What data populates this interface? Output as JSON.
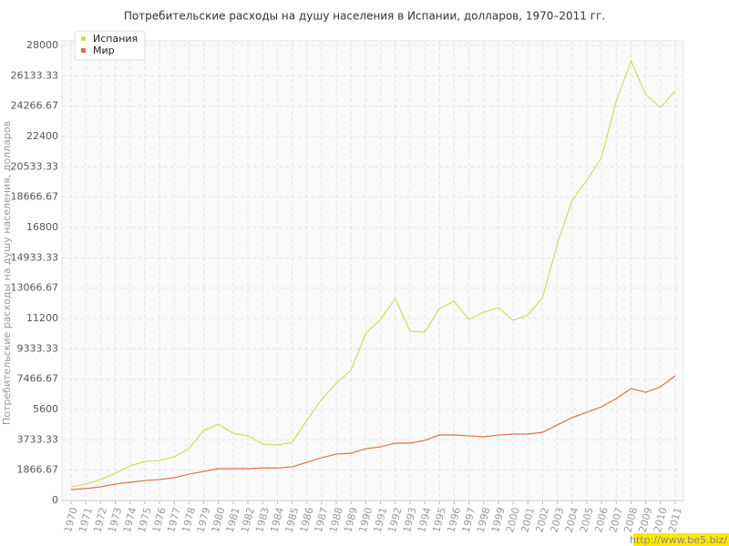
{
  "chart_data": {
    "type": "line",
    "title": "Потребительские расходы на душу населения в Испании, долларов, 1970–2011 гг.",
    "y_label": "Потребительские расходы на душу населения, долларов",
    "watermark": "http://www.be5.biz/",
    "x": [
      1970,
      1971,
      1972,
      1973,
      1974,
      1975,
      1976,
      1977,
      1978,
      1979,
      1980,
      1981,
      1982,
      1983,
      1984,
      1985,
      1986,
      1987,
      1988,
      1989,
      1990,
      1991,
      1992,
      1993,
      1994,
      1995,
      1996,
      1997,
      1998,
      1999,
      2000,
      2001,
      2002,
      2003,
      2004,
      2005,
      2006,
      2007,
      2008,
      2009,
      2010,
      2011
    ],
    "xlim": [
      1970,
      2011
    ],
    "ylim": [
      0,
      28000
    ],
    "yticks": [
      0,
      1866.67,
      3733.33,
      5600,
      7466.67,
      9333.33,
      11200,
      13066.67,
      14933.33,
      16800,
      18666.67,
      20533.33,
      22400,
      24266.67,
      26133.33,
      28000
    ],
    "grid": true,
    "legend": "top-left",
    "series": [
      {
        "name": "Испания",
        "color": "#c8e060",
        "values": [
          840,
          1010,
          1290,
          1680,
          2130,
          2400,
          2460,
          2690,
          3190,
          4310,
          4700,
          4140,
          3980,
          3470,
          3420,
          3580,
          4930,
          6220,
          7220,
          8010,
          10300,
          11140,
          12430,
          10420,
          10360,
          11820,
          12260,
          11140,
          11590,
          11870,
          11090,
          11420,
          12490,
          15790,
          18480,
          19710,
          21110,
          24580,
          27050,
          24980,
          24190,
          25200
        ]
      },
      {
        "name": "Мир",
        "color": "#e07048",
        "values": [
          670,
          730,
          840,
          1010,
          1120,
          1230,
          1290,
          1400,
          1620,
          1790,
          1960,
          1960,
          1960,
          2000,
          2000,
          2070,
          2350,
          2630,
          2860,
          2910,
          3190,
          3300,
          3530,
          3530,
          3700,
          4030,
          4030,
          3980,
          3920,
          4030,
          4090,
          4090,
          4200,
          4650,
          5100,
          5430,
          5770,
          6270,
          6890,
          6660,
          7000,
          7670
        ]
      }
    ]
  }
}
